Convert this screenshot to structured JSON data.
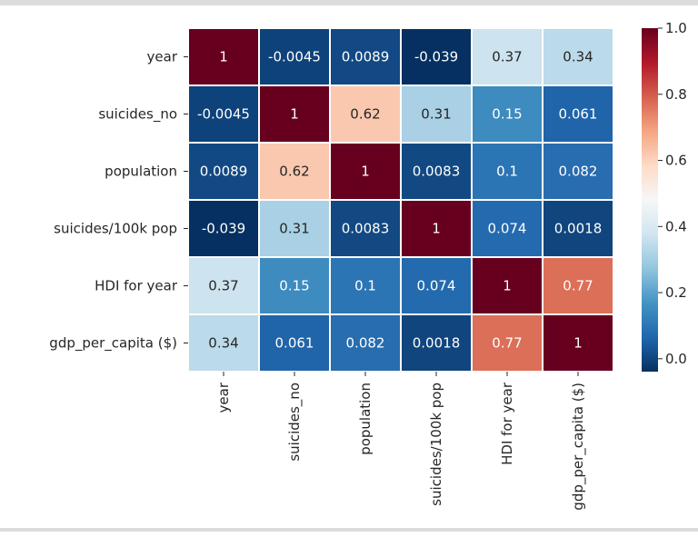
{
  "chart_data": {
    "type": "heatmap",
    "title": "",
    "xlabel": "",
    "ylabel": "",
    "row_labels": [
      "year",
      "suicides_no",
      "population",
      "suicides/100k pop",
      "HDI for year",
      "gdp_per_capita ($)"
    ],
    "col_labels": [
      "year",
      "suicides_no",
      "population",
      "suicides/100k pop",
      "HDI for year",
      "gdp_per_capita ($)"
    ],
    "values": [
      [
        1,
        -0.0045,
        0.0089,
        -0.039,
        0.37,
        0.34
      ],
      [
        -0.0045,
        1,
        0.62,
        0.31,
        0.15,
        0.061
      ],
      [
        0.0089,
        0.62,
        1,
        0.0083,
        0.1,
        0.082
      ],
      [
        -0.039,
        0.31,
        0.0083,
        1,
        0.074,
        0.0018
      ],
      [
        0.37,
        0.15,
        0.1,
        0.074,
        1,
        0.77
      ],
      [
        0.34,
        0.061,
        0.082,
        0.0018,
        0.77,
        1
      ]
    ],
    "cell_text": [
      [
        "1",
        "-0.0045",
        "0.0089",
        "-0.039",
        "0.37",
        "0.34"
      ],
      [
        "-0.0045",
        "1",
        "0.62",
        "0.31",
        "0.15",
        "0.061"
      ],
      [
        "0.0089",
        "0.62",
        "1",
        "0.0083",
        "0.1",
        "0.082"
      ],
      [
        "-0.039",
        "0.31",
        "0.0083",
        "1",
        "0.074",
        "0.0018"
      ],
      [
        "0.37",
        "0.15",
        "0.1",
        "0.074",
        "1",
        "0.77"
      ],
      [
        "0.34",
        "0.061",
        "0.082",
        "0.0018",
        "0.77",
        "1"
      ]
    ],
    "colormap": "RdBu_r",
    "colorbar": {
      "range": [
        -0.039,
        1.0
      ],
      "ticks": [
        0.0,
        0.2,
        0.4,
        0.6,
        0.8,
        1.0
      ],
      "tick_labels": [
        "0.0",
        "0.2",
        "0.4",
        "0.6",
        "0.8",
        "1.0"
      ]
    },
    "cell_separator_color": "#ffffff",
    "colors": {
      "dark_red": "#67001f",
      "light_neutral": "#f7f7f7",
      "dark_blue": "#053061"
    }
  }
}
